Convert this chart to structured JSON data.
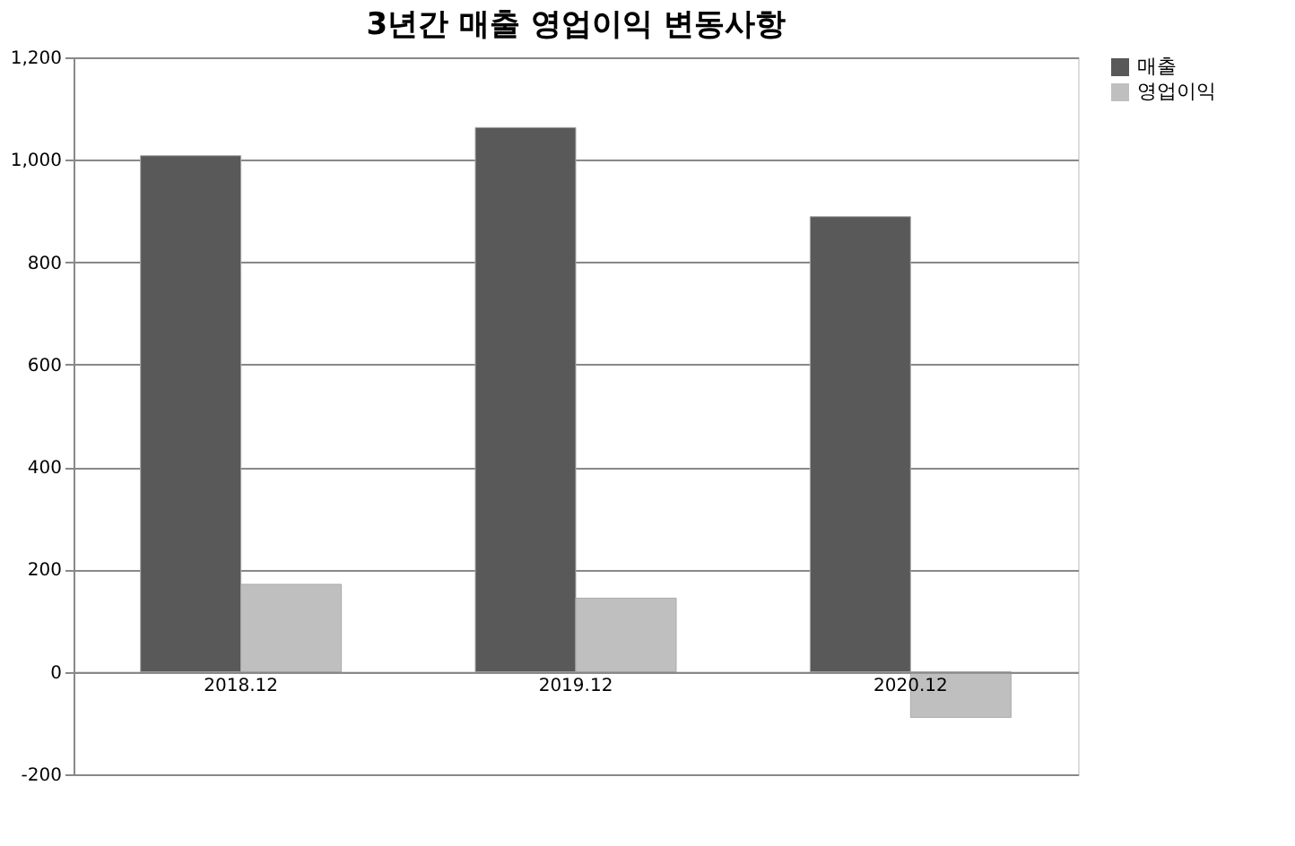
{
  "chart_data": {
    "type": "bar",
    "title": "3년간 매출 영업이익 변동사항",
    "categories": [
      "2018.12",
      "2019.12",
      "2020.12"
    ],
    "series": [
      {
        "name": "매출",
        "color": "#595959",
        "values": [
          1008,
          1063,
          889
        ]
      },
      {
        "name": "영업이익",
        "color": "#bfbfbf",
        "values": [
          171,
          144,
          -89
        ]
      }
    ],
    "ylim": [
      -200,
      1200
    ],
    "yticks": [
      {
        "value": -200,
        "label": "-200"
      },
      {
        "value": 0,
        "label": "0"
      },
      {
        "value": 200,
        "label": "200"
      },
      {
        "value": 400,
        "label": "400"
      },
      {
        "value": 600,
        "label": "600"
      },
      {
        "value": 800,
        "label": "800"
      },
      {
        "value": 1000,
        "label": "1,000"
      },
      {
        "value": 1200,
        "label": "1,200"
      }
    ],
    "grid": "y",
    "legend": "right"
  }
}
